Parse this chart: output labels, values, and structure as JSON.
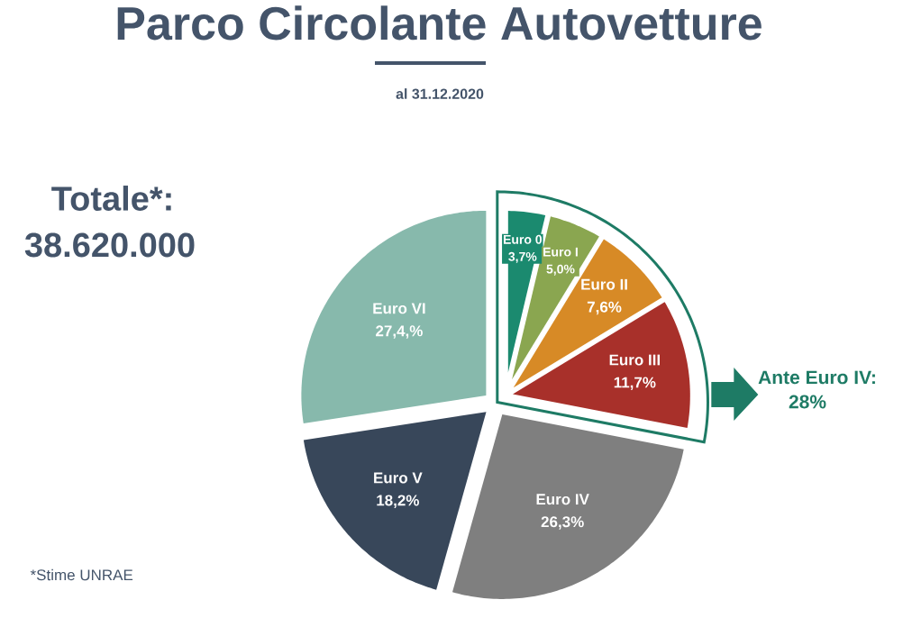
{
  "chart_data": {
    "type": "pie",
    "title": "Parco Circolante Autovetture",
    "subtitle": "al 31.12.2020",
    "categories": [
      "Euro 0",
      "Euro I",
      "Euro II",
      "Euro III",
      "Euro IV",
      "Euro V",
      "Euro VI"
    ],
    "values": [
      3.7,
      5.0,
      7.6,
      11.7,
      26.3,
      18.2,
      27.4
    ],
    "colors": [
      "#1b8a6f",
      "#8aa650",
      "#d78a26",
      "#a8302a",
      "#7f7f7f",
      "#38475a",
      "#87b9ac"
    ],
    "value_labels": [
      "3,7%",
      "5,0%",
      "7,6%",
      "11,7%",
      "26,3%",
      "18,2%",
      "27,4,%"
    ],
    "annotations": [
      "Totale*:",
      "38.620.000",
      "Ante Euro IV:",
      "28%",
      "*Stime UNRAE"
    ]
  }
}
